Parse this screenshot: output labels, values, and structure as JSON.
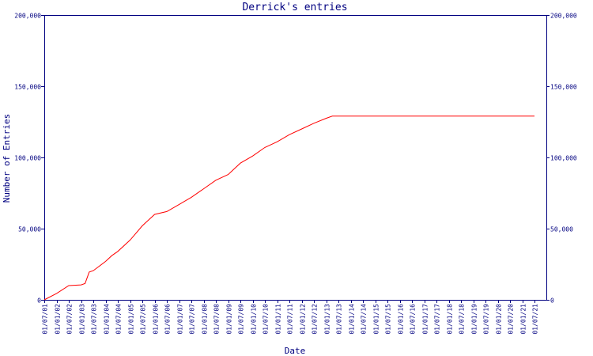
{
  "chart_data": {
    "type": "line",
    "title": "Derrick's entries",
    "xlabel": "Date",
    "ylabel": "Number of Entries",
    "ylim": [
      0,
      200000
    ],
    "yticks": [
      {
        "value": 0,
        "label": "0"
      },
      {
        "value": 50000,
        "label": "50,000"
      },
      {
        "value": 100000,
        "label": "100,000"
      },
      {
        "value": 150000,
        "label": "150,000"
      },
      {
        "value": 200000,
        "label": "200,000"
      }
    ],
    "x_tick_labels": [
      "01/07/01",
      "01/01/02",
      "01/07/02",
      "01/01/03",
      "01/07/03",
      "01/01/04",
      "01/07/04",
      "01/01/05",
      "01/07/05",
      "01/01/06",
      "01/07/06",
      "01/01/07",
      "01/07/07",
      "01/01/08",
      "01/07/08",
      "01/01/09",
      "01/07/09",
      "01/01/10",
      "01/07/10",
      "01/01/11",
      "01/07/11",
      "01/01/12",
      "01/07/12",
      "01/01/13",
      "01/07/13",
      "01/01/14",
      "01/07/14",
      "01/01/15",
      "01/07/15",
      "01/01/16",
      "01/07/16",
      "01/01/17",
      "01/07/17",
      "01/01/18",
      "01/07/18",
      "01/01/19",
      "01/07/19",
      "01/01/20",
      "01/07/20",
      "01/01/21",
      "01/07/21"
    ],
    "xlim": [
      "01/07/01",
      "01/07/21"
    ],
    "series": [
      {
        "name": "",
        "color": "#ff0000",
        "x": [
          "01/07/01",
          "01/01/02",
          "01/07/02",
          "01/01/03",
          "01/03/03",
          "01/05/03",
          "01/07/03",
          "01/01/04",
          "01/04/04",
          "01/07/04",
          "01/01/05",
          "01/07/05",
          "01/01/06",
          "01/07/06",
          "01/01/07",
          "01/07/07",
          "01/01/08",
          "01/07/08",
          "01/01/09",
          "01/07/09",
          "01/01/10",
          "01/07/10",
          "01/01/11",
          "01/07/11",
          "01/01/12",
          "01/07/12",
          "01/01/13",
          "01/04/13",
          "01/07/13",
          "01/07/21"
        ],
        "y": [
          0,
          4500,
          10000,
          10500,
          11500,
          19500,
          20500,
          27000,
          31000,
          34000,
          42000,
          52000,
          60000,
          62000,
          67000,
          72000,
          78000,
          84000,
          88000,
          96000,
          101000,
          107000,
          111000,
          116000,
          120000,
          124000,
          127500,
          129000,
          129000,
          129000
        ]
      }
    ]
  }
}
